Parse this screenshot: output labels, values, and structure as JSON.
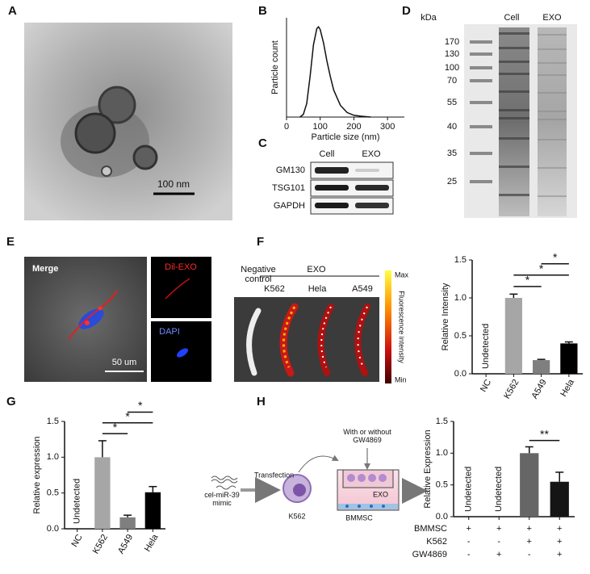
{
  "panel_letters": [
    "A",
    "B",
    "C",
    "D",
    "E",
    "F",
    "G",
    "H"
  ],
  "panel_a": {
    "scale_bar": "100 nm"
  },
  "panel_c": {
    "columns": [
      "Cell",
      "EXO"
    ],
    "rows": [
      "GM130",
      "TSG101",
      "GAPDH"
    ]
  },
  "panel_d": {
    "unit": "kDa",
    "columns": [
      "Cell",
      "EXO"
    ],
    "markers": [
      170,
      130,
      100,
      70,
      55,
      40,
      35,
      25
    ]
  },
  "panel_e": {
    "merge": "Merge",
    "channels": [
      "Dil-EXO",
      "DAPI"
    ],
    "scale_bar": "50 um"
  },
  "panel_f": {
    "group": "EXO",
    "samples": [
      "Negative control",
      "K562",
      "Hela",
      "A549"
    ],
    "colorbar": {
      "max": "Max",
      "min": "Min",
      "label": "Fluorescence intensity"
    }
  },
  "panel_h": {
    "mimic": "cel-miR-39 mimic",
    "transfection": "Transfection",
    "cell": "K562",
    "treatment": "With or without GW4869",
    "vesicle": "EXO",
    "recipient": "BMMSC"
  },
  "chart_data": [
    {
      "type": "line",
      "xlabel": "Particle size (nm)",
      "ylabel": "Particle count",
      "x": [
        40,
        50,
        60,
        70,
        80,
        90,
        95,
        100,
        110,
        120,
        130,
        140,
        160,
        180,
        200,
        220,
        250
      ],
      "series": [
        {
          "color": "#111111",
          "values": [
            0,
            0.03,
            0.15,
            0.45,
            0.8,
            0.98,
            1.0,
            0.97,
            0.82,
            0.62,
            0.45,
            0.3,
            0.13,
            0.05,
            0.02,
            0.01,
            0
          ]
        }
      ],
      "xlim": [
        0,
        350
      ],
      "xticks": [
        0,
        100,
        200,
        300
      ],
      "ylim": [
        0,
        1.1
      ]
    },
    {
      "type": "bar",
      "ylabel": "Relative Intensity",
      "categories": [
        "NC",
        "K562",
        "A549",
        "Hela"
      ],
      "values": [
        null,
        1.0,
        0.18,
        0.4
      ],
      "errors": [
        null,
        0.05,
        0.01,
        0.02
      ],
      "colors": [
        null,
        "#a6a6a6",
        "#7f7f7f",
        "#000000"
      ],
      "ylim": [
        0,
        1.5
      ],
      "yticks": [
        {
          "value": 0,
          "label": "0.0"
        },
        {
          "value": 0.5,
          "label": "0.5"
        },
        {
          "value": 1,
          "label": "1.0"
        },
        {
          "value": 1.5,
          "label": "1.5"
        }
      ],
      "annotations": [
        {
          "category": 0,
          "text": "Undetected"
        }
      ],
      "comparisons": [
        {
          "between": [
            1,
            2
          ],
          "label": "*"
        },
        {
          "between": [
            1,
            3
          ],
          "label": "*"
        },
        {
          "between": [
            2,
            3
          ],
          "label": "*"
        }
      ]
    },
    {
      "type": "bar",
      "ylabel": "Relative expression",
      "categories": [
        "NC",
        "K562",
        "A549",
        "Hela"
      ],
      "values": [
        null,
        1.0,
        0.16,
        0.51
      ],
      "errors": [
        null,
        0.23,
        0.03,
        0.08
      ],
      "colors": [
        null,
        "#a6a6a6",
        "#7f7f7f",
        "#000000"
      ],
      "ylim": [
        0,
        1.5
      ],
      "yticks": [
        {
          "value": 0,
          "label": "0.0"
        },
        {
          "value": 0.5,
          "label": "0.5"
        },
        {
          "value": 1,
          "label": "1.0"
        },
        {
          "value": 1.5,
          "label": "1.5"
        }
      ],
      "annotations": [
        {
          "category": 0,
          "text": "Undetected"
        }
      ],
      "comparisons": [
        {
          "between": [
            1,
            2
          ],
          "label": "*"
        },
        {
          "between": [
            1,
            3
          ],
          "label": "*"
        },
        {
          "between": [
            2,
            3
          ],
          "label": "*"
        }
      ]
    },
    {
      "type": "bar",
      "ylabel": "Relative Expression",
      "categories": [
        null,
        null,
        null,
        null
      ],
      "values": [
        null,
        null,
        1.0,
        0.55
      ],
      "errors": [
        null,
        null,
        0.1,
        0.15
      ],
      "colors": [
        null,
        null,
        "#666666",
        "#151515"
      ],
      "ylim": [
        0,
        1.5
      ],
      "yticks": [
        {
          "value": 0,
          "label": "0.0"
        },
        {
          "value": 0.5,
          "label": "0.5"
        },
        {
          "value": 1,
          "label": "1.0"
        },
        {
          "value": 1.5,
          "label": "1.5"
        }
      ],
      "annotations": [
        {
          "category": 0,
          "text": "Undetected"
        },
        {
          "category": 1,
          "text": "Undetected"
        }
      ],
      "comparisons": [
        {
          "between": [
            2,
            3
          ],
          "label": "**"
        }
      ],
      "conditions": [
        {
          "name": "BMMSC",
          "marks": [
            "+",
            "+",
            "+",
            "+"
          ]
        },
        {
          "name": "K562",
          "marks": [
            "-",
            "-",
            "+",
            "+"
          ]
        },
        {
          "name": "GW4869",
          "marks": [
            "-",
            "+",
            "-",
            "+"
          ]
        }
      ]
    }
  ]
}
